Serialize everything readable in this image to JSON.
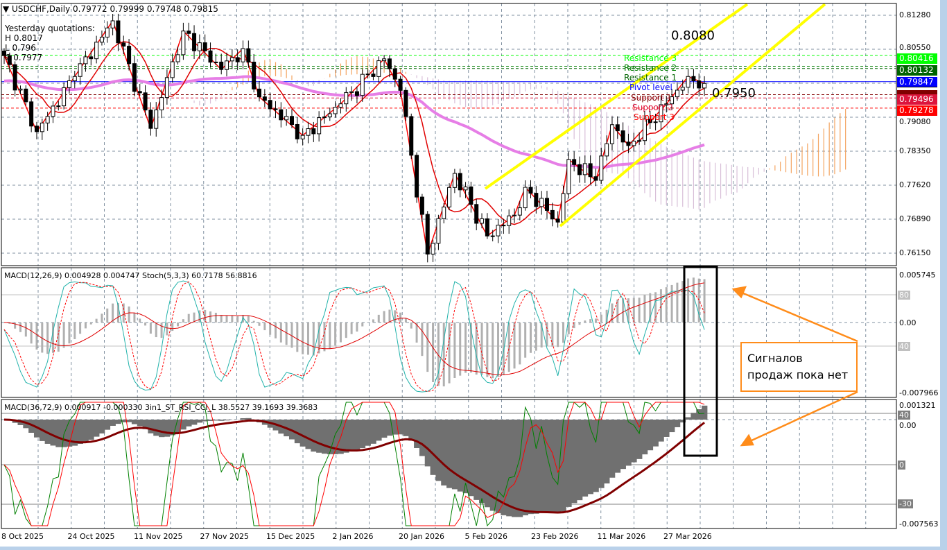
{
  "header": {
    "symbol_tf": "USDCHF,Daily",
    "ohlc": "0.79772 0.79999 0.79748 0.79815"
  },
  "yesterday": {
    "title": "Yesterday quotations:",
    "high": "H 0.8017",
    "low": "L 0.796",
    "close": "C 0.7977"
  },
  "levels": [
    {
      "label": "Resistance 3",
      "price": 0.80416,
      "tag": "0.80416",
      "color": "#00ff00"
    },
    {
      "label": "Resistance 2",
      "price": 0.8018,
      "tag": "",
      "color": "#008000"
    },
    {
      "label": "Resistance 1",
      "price": 0.80132,
      "tag": "0.80132",
      "color": "#006400"
    },
    {
      "label": "Pivot level",
      "price": 0.79847,
      "tag": "0.79847",
      "color": "#0000ff"
    },
    {
      "label": "Support 1",
      "price": 0.79568,
      "tag": "",
      "color": "#800000"
    },
    {
      "label": "Support 2",
      "price": 0.79496,
      "tag": "0.79496",
      "color": "#dc143c"
    },
    {
      "label": "Support 3",
      "price": 0.79278,
      "tag": "0.79278",
      "color": "#ff0000"
    }
  ],
  "annotations": {
    "target_high": "0.8080",
    "target_low": "0.7950",
    "note": "Сигналов продаж пока нет"
  },
  "price_axis": [
    "0.81280",
    "0.80550",
    "0.79080",
    "0.78350",
    "0.77620",
    "0.76890",
    "0.76150"
  ],
  "macd_pane": {
    "title": "MACD(12,26,9) 0.004928 0.004747  Stoch(5,3,3) 60.7178 56.8816",
    "max": "0.005745",
    "zero": "0.00",
    "min": "-0.007966",
    "level_80": "80",
    "level_40": "40"
  },
  "lower_pane": {
    "title": "MACD(36,72,9) 0.000917 -0.000330  3in1_ST_RSI_CCI_L 38.5527 39.1693 39.3683",
    "max": "0.001321",
    "zero": "0.00",
    "min": "-0.007563",
    "level_40": "40",
    "level_0": "0",
    "level_m30": "-30"
  },
  "dates": [
    "8 Oct 2025",
    "24 Oct 2025",
    "11 Nov 2025",
    "27 Nov 2025",
    "15 Dec 2025",
    "2 Jan 2026",
    "20 Jan 2026",
    "5 Feb 2026",
    "23 Feb 2026",
    "11 Mar 2026",
    "27 Mar 2026"
  ],
  "chart_data": {
    "type": "candlestick",
    "symbol": "USDCHF",
    "timeframe": "Daily",
    "ylim": [
      0.7615,
      0.8128
    ],
    "bars": 130,
    "anchor_closes": [
      [
        0,
        0.8041
      ],
      [
        6,
        0.7877
      ],
      [
        13,
        0.7996
      ],
      [
        20,
        0.8116
      ],
      [
        27,
        0.7884
      ],
      [
        33,
        0.8094
      ],
      [
        40,
        0.8011
      ],
      [
        44,
        0.8056
      ],
      [
        47,
        0.7952
      ],
      [
        55,
        0.7869
      ],
      [
        62,
        0.7937
      ],
      [
        70,
        0.8034
      ],
      [
        73,
        0.7966
      ],
      [
        78,
        0.7613
      ],
      [
        83,
        0.7787
      ],
      [
        89,
        0.7652
      ],
      [
        94,
        0.7697
      ],
      [
        96,
        0.7757
      ],
      [
        102,
        0.7682
      ],
      [
        104,
        0.7817
      ],
      [
        109,
        0.7772
      ],
      [
        112,
        0.7892
      ],
      [
        115,
        0.7847
      ],
      [
        122,
        0.7937
      ],
      [
        126,
        0.7996
      ],
      [
        129,
        0.7981
      ]
    ]
  }
}
